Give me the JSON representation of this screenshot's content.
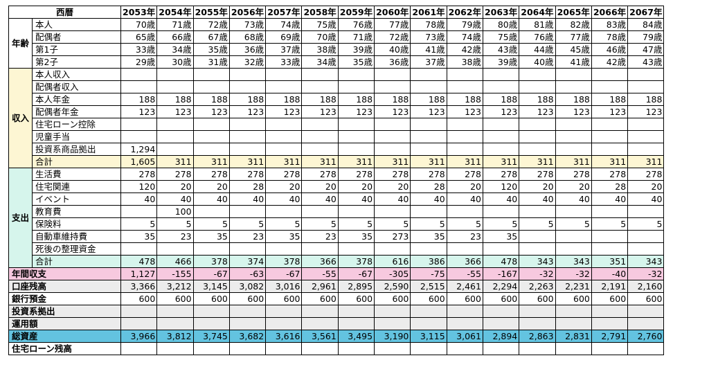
{
  "header": {
    "label": "西暦",
    "years": [
      "2053年",
      "2054年",
      "2055年",
      "2056年",
      "2057年",
      "2058年",
      "2059年",
      "2060年",
      "2061年",
      "2062年",
      "2063年",
      "2064年",
      "2065年",
      "2066年",
      "2067年"
    ]
  },
  "age": {
    "category": "年齢",
    "rows": [
      {
        "label": "本人",
        "values": [
          "70歳",
          "71歳",
          "72歳",
          "73歳",
          "74歳",
          "75歳",
          "76歳",
          "77歳",
          "78歳",
          "79歳",
          "80歳",
          "81歳",
          "82歳",
          "83歳",
          "84歳"
        ]
      },
      {
        "label": "配偶者",
        "values": [
          "65歳",
          "66歳",
          "67歳",
          "68歳",
          "69歳",
          "70歳",
          "71歳",
          "72歳",
          "73歳",
          "74歳",
          "75歳",
          "76歳",
          "77歳",
          "78歳",
          "79歳"
        ]
      },
      {
        "label": "第1子",
        "values": [
          "33歳",
          "34歳",
          "35歳",
          "36歳",
          "37歳",
          "38歳",
          "39歳",
          "40歳",
          "41歳",
          "42歳",
          "43歳",
          "44歳",
          "45歳",
          "46歳",
          "47歳"
        ]
      },
      {
        "label": "第2子",
        "values": [
          "29歳",
          "30歳",
          "31歳",
          "32歳",
          "33歳",
          "34歳",
          "35歳",
          "36歳",
          "37歳",
          "38歳",
          "39歳",
          "40歳",
          "41歳",
          "42歳",
          "43歳"
        ]
      }
    ]
  },
  "income": {
    "category": "収入",
    "rows": [
      {
        "label": "本人収入",
        "values": [
          "",
          "",
          "",
          "",
          "",
          "",
          "",
          "",
          "",
          "",
          "",
          "",
          "",
          "",
          ""
        ]
      },
      {
        "label": "配偶者収入",
        "values": [
          "",
          "",
          "",
          "",
          "",
          "",
          "",
          "",
          "",
          "",
          "",
          "",
          "",
          "",
          ""
        ]
      },
      {
        "label": "本人年金",
        "values": [
          "188",
          "188",
          "188",
          "188",
          "188",
          "188",
          "188",
          "188",
          "188",
          "188",
          "188",
          "188",
          "188",
          "188",
          "188"
        ]
      },
      {
        "label": "配偶者年金",
        "values": [
          "123",
          "123",
          "123",
          "123",
          "123",
          "123",
          "123",
          "123",
          "123",
          "123",
          "123",
          "123",
          "123",
          "123",
          "123"
        ]
      },
      {
        "label": "住宅ローン控除",
        "values": [
          "",
          "",
          "",
          "",
          "",
          "",
          "",
          "",
          "",
          "",
          "",
          "",
          "",
          "",
          ""
        ]
      },
      {
        "label": "児童手当",
        "values": [
          "",
          "",
          "",
          "",
          "",
          "",
          "",
          "",
          "",
          "",
          "",
          "",
          "",
          "",
          ""
        ]
      },
      {
        "label": "投資系商品拠出",
        "values": [
          "1,294",
          "",
          "",
          "",
          "",
          "",
          "",
          "",
          "",
          "",
          "",
          "",
          "",
          "",
          ""
        ]
      }
    ],
    "total": {
      "label": "合計",
      "values": [
        "1,605",
        "311",
        "311",
        "311",
        "311",
        "311",
        "311",
        "311",
        "311",
        "311",
        "311",
        "311",
        "311",
        "311",
        "311"
      ]
    }
  },
  "expense": {
    "category": "支出",
    "rows": [
      {
        "label": "生活費",
        "values": [
          "278",
          "278",
          "278",
          "278",
          "278",
          "278",
          "278",
          "278",
          "278",
          "278",
          "278",
          "278",
          "278",
          "278",
          "278"
        ]
      },
      {
        "label": "住宅関連",
        "values": [
          "120",
          "20",
          "20",
          "28",
          "20",
          "20",
          "20",
          "20",
          "28",
          "20",
          "120",
          "20",
          "20",
          "28",
          "20"
        ]
      },
      {
        "label": "イベント",
        "values": [
          "40",
          "40",
          "40",
          "40",
          "40",
          "40",
          "40",
          "40",
          "40",
          "40",
          "40",
          "40",
          "40",
          "40",
          "40"
        ]
      },
      {
        "label": "教育費",
        "values": [
          "",
          "100",
          "",
          "",
          "",
          "",
          "",
          "",
          "",
          "",
          "",
          "",
          "",
          "",
          ""
        ]
      },
      {
        "label": "保険料",
        "values": [
          "5",
          "5",
          "5",
          "5",
          "5",
          "5",
          "5",
          "5",
          "5",
          "5",
          "5",
          "5",
          "5",
          "5",
          "5"
        ]
      },
      {
        "label": "自動車維持費",
        "values": [
          "35",
          "23",
          "35",
          "23",
          "35",
          "23",
          "35",
          "273",
          "35",
          "23",
          "35",
          "",
          "",
          "",
          ""
        ]
      },
      {
        "label": "死後の整理資金",
        "values": [
          "",
          "",
          "",
          "",
          "",
          "",
          "",
          "",
          "",
          "",
          "",
          "",
          "",
          "",
          ""
        ]
      }
    ],
    "total": {
      "label": "合計",
      "values": [
        "478",
        "466",
        "378",
        "374",
        "378",
        "366",
        "378",
        "616",
        "386",
        "366",
        "478",
        "343",
        "343",
        "351",
        "343"
      ]
    }
  },
  "annual_balance": {
    "label": "年間収支",
    "values": [
      "1,127",
      "-155",
      "-67",
      "-63",
      "-67",
      "-55",
      "-67",
      "-305",
      "-75",
      "-55",
      "-167",
      "-32",
      "-32",
      "-40",
      "-32"
    ]
  },
  "account_balance": {
    "label": "口座残高",
    "values": [
      "3,366",
      "3,212",
      "3,145",
      "3,082",
      "3,016",
      "2,961",
      "2,895",
      "2,590",
      "2,515",
      "2,461",
      "2,294",
      "2,263",
      "2,231",
      "2,191",
      "2,160"
    ]
  },
  "bank_deposit": {
    "label": "銀行預金",
    "values": [
      "600",
      "600",
      "600",
      "600",
      "600",
      "600",
      "600",
      "600",
      "600",
      "600",
      "600",
      "600",
      "600",
      "600",
      "600"
    ]
  },
  "investment_contribution": {
    "label": "投資系拠出",
    "values": [
      "",
      "",
      "",
      "",
      "",
      "",
      "",
      "",
      "",
      "",
      "",
      "",
      "",
      "",
      ""
    ]
  },
  "managed_amount": {
    "label": "運用額",
    "values": [
      "",
      "",
      "",
      "",
      "",
      "",
      "",
      "",
      "",
      "",
      "",
      "",
      "",
      "",
      ""
    ]
  },
  "total_assets": {
    "label": "総資産",
    "values": [
      "3,966",
      "3,812",
      "3,745",
      "3,682",
      "3,616",
      "3,561",
      "3,495",
      "3,190",
      "3,115",
      "3,061",
      "2,894",
      "2,863",
      "2,831",
      "2,791",
      "2,760"
    ]
  },
  "mortgage_balance": {
    "label": "住宅ローン残高",
    "values": [
      "",
      "",
      "",
      "",
      "",
      "",
      "",
      "",
      "",
      "",
      "",
      "",
      "",
      "",
      ""
    ]
  }
}
